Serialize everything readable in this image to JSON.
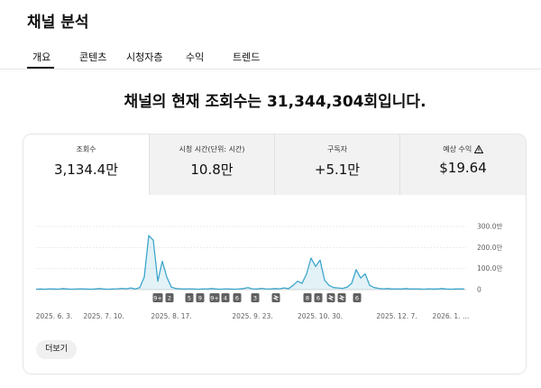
{
  "header": {
    "title": "채널 분석"
  },
  "tabs": [
    "개요",
    "콘텐츠",
    "시청자층",
    "수익",
    "트렌드"
  ],
  "headline": "채널의 현재 조회수는 31,344,304회입니다.",
  "metrics": [
    {
      "label": "조회수",
      "value": "3,134.4만"
    },
    {
      "label": "시청 시간(단위: 시간)",
      "value": "10.8만"
    },
    {
      "label": "구독자",
      "value": "+5.1만"
    },
    {
      "label": "예상 수익",
      "value": "$19.64"
    }
  ],
  "chart_data": {
    "type": "line",
    "color": "#3ea6cc",
    "categories": [
      null,
      null,
      null,
      null,
      "2025. 6. 3.",
      null,
      null,
      null,
      null,
      null,
      null,
      null,
      null,
      null,
      null,
      "2025. 7. 10.",
      null,
      null,
      null,
      null,
      null,
      null,
      null,
      null,
      null,
      null,
      null,
      null,
      null,
      null,
      "2025. 8. 17.",
      null,
      null,
      null,
      null,
      null,
      null,
      null,
      null,
      null,
      null,
      null,
      null,
      null,
      null,
      null,
      null,
      null,
      "2025. 9. 23.",
      null,
      null,
      null,
      null,
      null,
      null,
      null,
      null,
      null,
      null,
      null,
      null,
      null,
      null,
      "2025. 10. 30.",
      null,
      null,
      null,
      null,
      null,
      null,
      null,
      null,
      null,
      null,
      null,
      null,
      null,
      null,
      null,
      null,
      "2025. 12. 7.",
      null,
      null,
      null,
      null,
      null,
      null,
      null,
      null,
      null,
      null,
      null,
      "2026. 1. …",
      null,
      null,
      null
    ],
    "values": [
      2,
      3,
      2,
      4,
      3,
      2,
      5,
      3,
      2,
      3,
      4,
      3,
      2,
      3,
      5,
      3,
      2,
      3,
      4,
      6,
      4,
      8,
      3,
      10,
      60,
      257,
      235,
      40,
      135,
      60,
      12,
      5,
      4,
      3,
      4,
      3,
      2,
      4,
      3,
      5,
      3,
      2,
      4,
      3,
      2,
      3,
      5,
      10,
      4,
      3,
      6,
      4,
      3,
      5,
      4,
      8,
      5,
      20,
      40,
      30,
      75,
      150,
      110,
      140,
      45,
      20,
      10,
      8,
      6,
      12,
      30,
      95,
      55,
      75,
      20,
      10,
      6,
      4,
      5,
      3,
      4,
      3,
      5,
      3,
      4,
      3,
      2,
      4,
      3,
      3,
      5,
      3,
      2,
      3,
      4,
      3
    ],
    "ylim": [
      0,
      300
    ],
    "yticks": [
      0,
      {
        "value": 100,
        "label": "100.0만"
      },
      {
        "value": 200,
        "label": "200.0만"
      },
      {
        "value": 300,
        "label": "300.0만"
      }
    ],
    "grid": true,
    "event_markers": [
      "9+",
      "2",
      "5",
      "9",
      "9+",
      "4",
      "6",
      "3",
      "8",
      "6",
      "6"
    ]
  },
  "more_button": "더보기"
}
